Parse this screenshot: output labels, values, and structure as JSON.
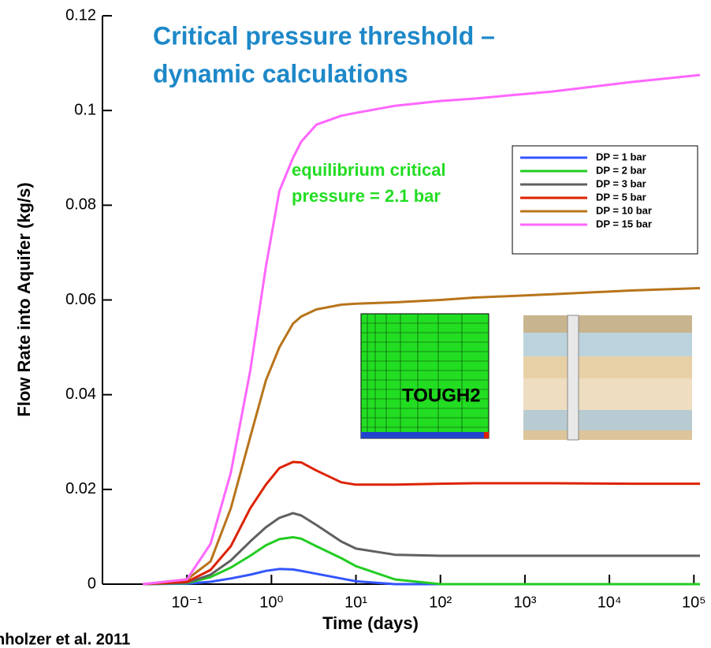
{
  "chart_data": {
    "type": "line",
    "annotation_title": [
      "Critical pressure threshold –",
      "dynamic calculations"
    ],
    "annotation": [
      "equilibrium critical",
      "pressure = 2.1 bar"
    ],
    "inset_label": "TOUGH2",
    "source": "nholzer et al. 2011",
    "x_label": "Time  (days)",
    "y_label": "Flow Rate into Aquifer  (kg/s)",
    "log_x": true,
    "legend": "upper right",
    "xlim": [
      0.01,
      118000
    ],
    "ylim": [
      0,
      0.12
    ],
    "xticks": [
      {
        "value": 0.1,
        "label": "10⁻¹"
      },
      {
        "value": 1,
        "label": "10⁰"
      },
      {
        "value": 10,
        "label": "10¹"
      },
      {
        "value": 100,
        "label": "10²"
      },
      {
        "value": 1000,
        "label": "10³"
      },
      {
        "value": 10000,
        "label": "10⁴"
      },
      {
        "value": 100000,
        "label": "10⁵"
      }
    ],
    "yticks": [
      0,
      0.02,
      0.04,
      0.06,
      0.08,
      0.1,
      0.12
    ],
    "x": [
      0.03,
      0.1,
      0.19,
      0.33,
      0.56,
      0.86,
      1.24,
      1.8,
      2.25,
      3.4,
      6.7,
      10,
      29,
      100,
      250,
      2100,
      18000,
      118000
    ],
    "series": [
      {
        "name": "DP = 1 bar",
        "color": "#3355ff",
        "values": [
          0,
          0.0001,
          0.0005,
          0.0012,
          0.002,
          0.0028,
          0.0032,
          0.0031,
          0.0028,
          0.0022,
          0.0012,
          0.0006,
          0,
          0,
          0,
          0,
          0,
          0
        ]
      },
      {
        "name": "DP = 2 bar",
        "color": "#22cc22",
        "values": [
          0,
          0.0002,
          0.0015,
          0.0035,
          0.006,
          0.0082,
          0.0095,
          0.0099,
          0.0096,
          0.008,
          0.0055,
          0.0038,
          0.001,
          0,
          0,
          0,
          0,
          0
        ]
      },
      {
        "name": "DP = 3 bar",
        "color": "#606060",
        "values": [
          0,
          0.0003,
          0.002,
          0.005,
          0.009,
          0.012,
          0.014,
          0.015,
          0.0145,
          0.0125,
          0.009,
          0.0075,
          0.0062,
          0.006,
          0.006,
          0.006,
          0.006,
          0.006
        ]
      },
      {
        "name": "DP = 5 bar",
        "color": "#dd2200",
        "values": [
          0,
          0.0005,
          0.003,
          0.008,
          0.016,
          0.021,
          0.0245,
          0.0258,
          0.0257,
          0.024,
          0.0215,
          0.021,
          0.021,
          0.0212,
          0.0213,
          0.0213,
          0.0212,
          0.0212
        ]
      },
      {
        "name": "DP = 10 bar",
        "color": "#b8741a",
        "values": [
          0,
          0.001,
          0.0048,
          0.016,
          0.031,
          0.043,
          0.05,
          0.055,
          0.0565,
          0.058,
          0.059,
          0.0592,
          0.0595,
          0.06,
          0.0605,
          0.0612,
          0.062,
          0.0625
        ]
      },
      {
        "name": "DP = 15 bar",
        "color": "#ff66ff",
        "values": [
          0,
          0.001,
          0.0085,
          0.0235,
          0.045,
          0.067,
          0.083,
          0.09,
          0.0934,
          0.097,
          0.0989,
          0.0995,
          0.101,
          0.102,
          0.1025,
          0.104,
          0.106,
          0.1075
        ]
      }
    ]
  }
}
